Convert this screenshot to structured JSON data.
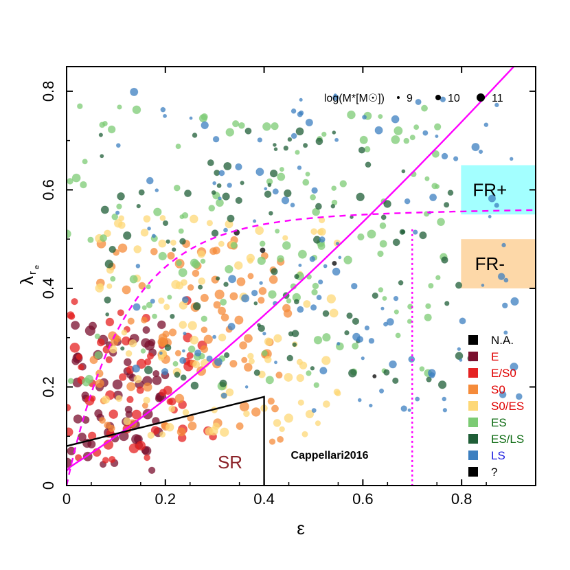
{
  "chart_data": {
    "type": "scatter",
    "title": "",
    "xlabel": "ε",
    "ylabel_main": "λ",
    "ylabel_sub1": "r",
    "ylabel_sub2": "e",
    "xlim": [
      0,
      0.95
    ],
    "ylim": [
      0,
      0.85
    ],
    "x_ticks": [
      0,
      0.2,
      0.4,
      0.6,
      0.8
    ],
    "x_tick_labels": [
      "0",
      "0.2",
      "0.4",
      "0.6",
      "0.8"
    ],
    "y_ticks": [
      0,
      0.2,
      0.4,
      0.6,
      0.8
    ],
    "y_tick_labels": [
      "0",
      "0.2",
      "0.4",
      "0.6",
      "0.8"
    ],
    "size_legend": {
      "label": "log(M*[M☉])",
      "entries": [
        {
          "value": 9,
          "label": "9"
        },
        {
          "value": 10,
          "label": "10"
        },
        {
          "value": 11,
          "label": "11"
        }
      ]
    },
    "legend": [
      {
        "label": "N.A.",
        "swatch": "#000000",
        "text_color": "#000000"
      },
      {
        "label": "E",
        "swatch": "#7a0f2e",
        "text_color": "#e00000"
      },
      {
        "label": "E/S0",
        "swatch": "#e52222",
        "text_color": "#e00000"
      },
      {
        "label": "S0",
        "swatch": "#f58b3a",
        "text_color": "#e00000"
      },
      {
        "label": "S0/ES",
        "swatch": "#fdd877",
        "text_color": "#e00000"
      },
      {
        "label": "ES",
        "swatch": "#7ccb74",
        "text_color": "#0d6b12"
      },
      {
        "label": "ES/LS",
        "swatch": "#1f5e37",
        "text_color": "#0d6b12"
      },
      {
        "label": "LS",
        "swatch": "#3c7fc0",
        "text_color": "#1d1ddf"
      },
      {
        "label": "?",
        "swatch": "#000000",
        "text_color": "#000000"
      }
    ],
    "regions": [
      {
        "label": "FR+",
        "color": "#a3ffff",
        "y_range": [
          0.55,
          0.65
        ]
      },
      {
        "label": "FR-",
        "color": "#fdd8a8",
        "y_range": [
          0.4,
          0.5
        ]
      }
    ],
    "annotations": {
      "sr_label": "SR",
      "sr_color": "#8b2228",
      "reference": "Cappellari2016"
    },
    "curves": [
      {
        "name": "edge-on isotropic (solid magenta)",
        "style": "solid",
        "color": "#ff00ff"
      },
      {
        "name": "intrinsic ellipticity 0.7 (dashed magenta)",
        "style": "dashed",
        "color": "#ff00ff"
      },
      {
        "name": "epsilon = 0.7 (dotted magenta)",
        "style": "dotted",
        "color": "#ff00ff"
      }
    ],
    "sr_boundary": [
      [
        0,
        0.08
      ],
      [
        0.4,
        0.18
      ],
      [
        0.4,
        0
      ]
    ],
    "series": [
      {
        "name": "E",
        "color": "#7a0f2e",
        "cluster": {
          "x_range": [
            0.0,
            0.2
          ],
          "y_range": [
            0.03,
            0.33
          ],
          "count": 70,
          "mass_range": [
            10.2,
            11.4
          ]
        }
      },
      {
        "name": "E/S0",
        "color": "#e52222",
        "cluster": {
          "x_range": [
            0.0,
            0.3
          ],
          "y_range": [
            0.05,
            0.38
          ],
          "count": 60,
          "mass_range": [
            10.0,
            11.3
          ]
        }
      },
      {
        "name": "S0",
        "color": "#f58b3a",
        "cluster": {
          "x_range": [
            0.05,
            0.45
          ],
          "y_range": [
            0.08,
            0.5
          ],
          "count": 95,
          "mass_range": [
            10.0,
            11.2
          ]
        }
      },
      {
        "name": "S0/ES",
        "color": "#fdd877",
        "cluster": {
          "x_range": [
            0.05,
            0.55
          ],
          "y_range": [
            0.1,
            0.55
          ],
          "count": 100,
          "mass_range": [
            9.8,
            11.0
          ]
        }
      },
      {
        "name": "ES",
        "color": "#7ccb74",
        "cluster": {
          "x_range": [
            0.0,
            0.78
          ],
          "y_range": [
            0.2,
            0.77
          ],
          "count": 140,
          "mass_range": [
            9.5,
            10.9
          ]
        }
      },
      {
        "name": "ES/LS",
        "color": "#1f5e37",
        "cluster": {
          "x_range": [
            0.05,
            0.85
          ],
          "y_range": [
            0.2,
            0.72
          ],
          "count": 100,
          "mass_range": [
            9.2,
            10.8
          ]
        }
      },
      {
        "name": "LS",
        "color": "#3c7fc0",
        "cluster": {
          "x_range": [
            0.1,
            0.92
          ],
          "y_range": [
            0.15,
            0.8
          ],
          "count": 130,
          "mass_range": [
            9.0,
            10.7
          ]
        }
      },
      {
        "name": "N.A.",
        "color": "#000000",
        "cluster": {
          "x_range": [
            0.3,
            0.7
          ],
          "y_range": [
            0.1,
            0.6
          ],
          "count": 4,
          "mass_range": [
            9.0,
            10.0
          ]
        }
      }
    ]
  }
}
